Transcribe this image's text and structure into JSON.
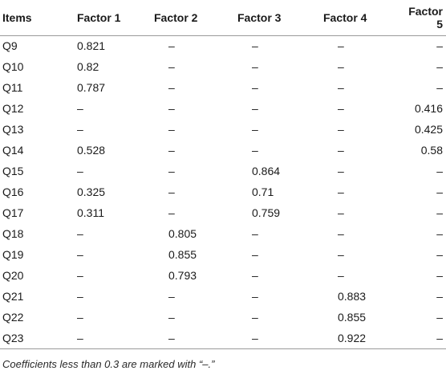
{
  "table": {
    "headers": [
      "Items",
      "Factor 1",
      "Factor 2",
      "Factor 3",
      "Factor 4",
      "Factor 5"
    ],
    "rows": [
      [
        "Q9",
        "0.821",
        "–",
        "–",
        "–",
        "–"
      ],
      [
        "Q10",
        "0.82",
        "–",
        "–",
        "–",
        "–"
      ],
      [
        "Q11",
        "0.787",
        "–",
        "–",
        "–",
        "–"
      ],
      [
        "Q12",
        "–",
        "–",
        "–",
        "–",
        "0.416"
      ],
      [
        "Q13",
        "–",
        "–",
        "–",
        "–",
        "0.425"
      ],
      [
        "Q14",
        "0.528",
        "–",
        "–",
        "–",
        "0.58"
      ],
      [
        "Q15",
        "–",
        "–",
        "0.864",
        "–",
        "–"
      ],
      [
        "Q16",
        "0.325",
        "–",
        "0.71",
        "–",
        "–"
      ],
      [
        "Q17",
        "0.311",
        "–",
        "0.759",
        "–",
        "–"
      ],
      [
        "Q18",
        "–",
        "0.805",
        "–",
        "–",
        "–"
      ],
      [
        "Q19",
        "–",
        "0.855",
        "–",
        "–",
        "–"
      ],
      [
        "Q20",
        "–",
        "0.793",
        "–",
        "–",
        "–"
      ],
      [
        "Q21",
        "–",
        "–",
        "–",
        "0.883",
        "–"
      ],
      [
        "Q22",
        "–",
        "–",
        "–",
        "0.855",
        "–"
      ],
      [
        "Q23",
        "–",
        "–",
        "–",
        "0.922",
        "–"
      ]
    ]
  },
  "footnote": "Coefficients less than 0.3 are marked with “–.”"
}
